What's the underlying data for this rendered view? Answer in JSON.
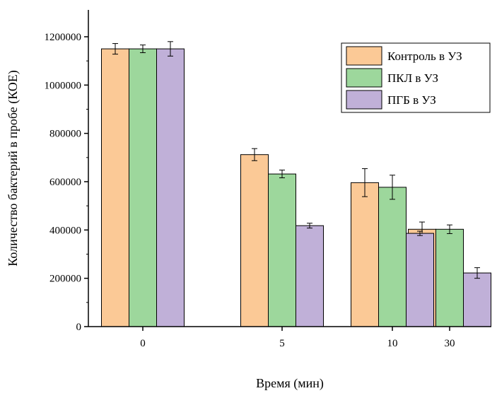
{
  "chart_data": {
    "type": "bar",
    "title": "",
    "xlabel": "Время (мин)",
    "ylabel": "Количество бактерий в пробе (КОЕ)",
    "categories": [
      "0",
      "5",
      "10",
      "30"
    ],
    "ylim": [
      0,
      1300000
    ],
    "yticks": [
      0,
      200000,
      400000,
      600000,
      800000,
      1000000,
      1200000
    ],
    "ytick_labels": [
      "0",
      "200000",
      "400000",
      "600000",
      "800000",
      "1000000",
      "1200000"
    ],
    "grid": false,
    "legend_position": "top-right",
    "series": [
      {
        "name": "Контроль в УЗ",
        "color": "#fbc996",
        "values": [
          1150000,
          712000,
          596000,
          403000
        ],
        "errors": [
          22000,
          25000,
          58000,
          30000
        ]
      },
      {
        "name": "ПКЛ в УЗ",
        "color": "#9dd79c",
        "values": [
          1150000,
          632000,
          577000,
          403000
        ],
        "errors": [
          16000,
          16000,
          50000,
          18000
        ]
      },
      {
        "name": "ПГБ в УЗ",
        "color": "#c0b0d8",
        "values": [
          1150000,
          418000,
          386000,
          222000
        ],
        "errors": [
          30000,
          10000,
          9000,
          22000
        ]
      }
    ]
  }
}
